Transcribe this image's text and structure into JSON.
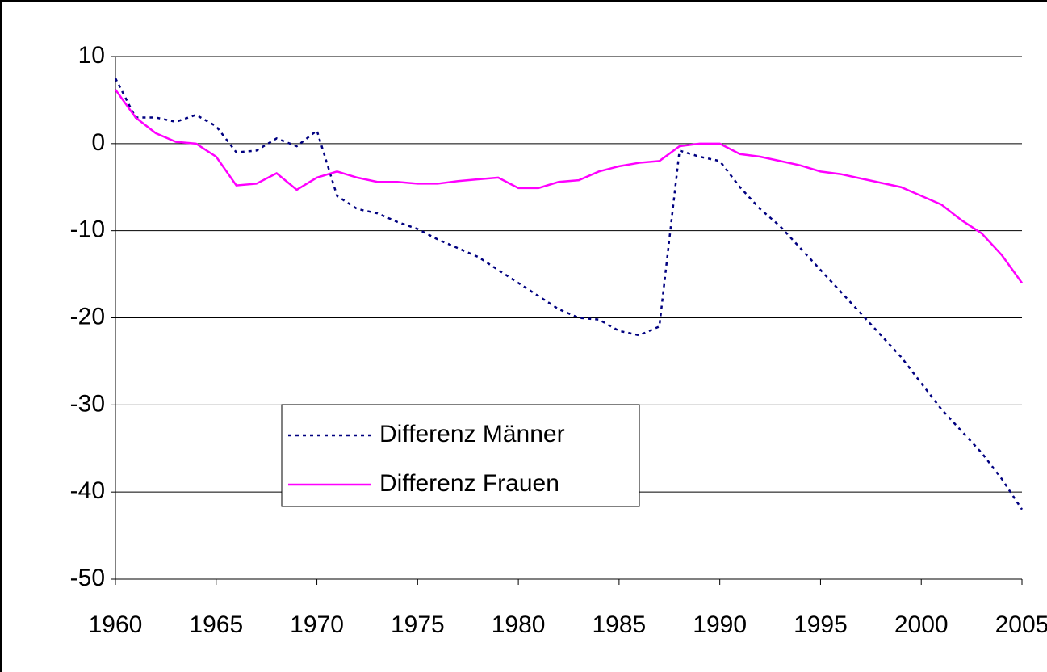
{
  "chart_data": {
    "type": "line",
    "x": [
      1960,
      1961,
      1962,
      1963,
      1964,
      1965,
      1966,
      1967,
      1968,
      1969,
      1970,
      1971,
      1972,
      1973,
      1974,
      1975,
      1976,
      1977,
      1978,
      1979,
      1980,
      1981,
      1982,
      1983,
      1984,
      1985,
      1986,
      1987,
      1988,
      1989,
      1990,
      1991,
      1992,
      1993,
      1994,
      1995,
      1996,
      1997,
      1998,
      1999,
      2000,
      2001,
      2002,
      2003,
      2004,
      2005
    ],
    "series": [
      {
        "name": "Differenz Männer",
        "color": "#000080",
        "dash": "dotted",
        "values": [
          7.5,
          3,
          3,
          2.5,
          3.3,
          2,
          -1,
          -0.8,
          0.6,
          -0.3,
          1.5,
          -6,
          -7.5,
          -8,
          -9,
          -9.8,
          -11,
          -12,
          -13,
          -14.5,
          -16,
          -17.5,
          -19,
          -20,
          -20.2,
          -21.5,
          -22,
          -21,
          -0.8,
          -1.5,
          -2,
          -5,
          -7.5,
          -9.5,
          -12,
          -14.5,
          -17,
          -19.5,
          -22,
          -24.5,
          -27.5,
          -30.5,
          -33,
          -35.5,
          -38.5,
          -42
        ]
      },
      {
        "name": "Differenz Frauen",
        "color": "#ff00ff",
        "dash": "solid",
        "values": [
          6.2,
          3,
          1.2,
          0.2,
          0,
          -1.5,
          -4.8,
          -4.6,
          -3.4,
          -5.3,
          -3.9,
          -3.2,
          -3.9,
          -4.4,
          -4.4,
          -4.6,
          -4.6,
          -4.3,
          -4.1,
          -3.9,
          -5.1,
          -5.1,
          -4.4,
          -4.2,
          -3.2,
          -2.6,
          -2.2,
          -2,
          -0.3,
          0,
          0,
          -1.2,
          -1.5,
          -2,
          -2.5,
          -3.2,
          -3.5,
          -4,
          -4.5,
          -5,
          -6,
          -7,
          -8.8,
          -10.3,
          -12.8,
          -16
        ]
      }
    ],
    "xlim": [
      1960,
      2005
    ],
    "xticks": [
      1960,
      1965,
      1970,
      1975,
      1980,
      1985,
      1990,
      1995,
      2000,
      2005
    ],
    "ylim": [
      -50,
      10
    ],
    "yticks": [
      -50,
      -40,
      -30,
      -20,
      -10,
      0,
      10
    ],
    "grid": true
  }
}
